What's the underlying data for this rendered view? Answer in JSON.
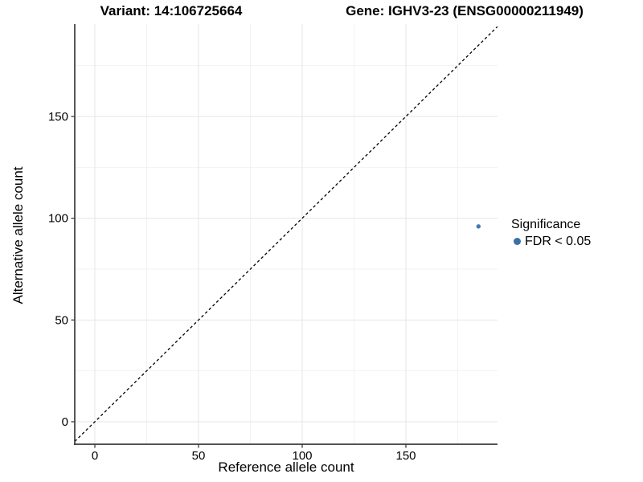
{
  "chart_data": {
    "type": "scatter",
    "title_left": "Variant: 14:106725664",
    "title_right": "Gene: IGHV3-23 (ENSG00000211949)",
    "xlabel": "Reference allele count",
    "ylabel": "Alternative allele count",
    "x_ticks": [
      0,
      50,
      100,
      150
    ],
    "y_ticks": [
      0,
      50,
      100,
      150
    ],
    "xlim": [
      -9.7,
      194.2
    ],
    "ylim": [
      -11.0,
      195.4
    ],
    "grid": "major+minor",
    "background": "#ffffff",
    "axis_line_color": "#3c3c3c",
    "major_grid_color": "#e6e6e6",
    "minor_grid_color": "#f2f2f2",
    "identity_line": {
      "slope": 1,
      "intercept": 0,
      "style": "dashed",
      "color": "#000000"
    },
    "points": [
      {
        "x": 185,
        "y": 96,
        "series": "FDR < 0.05",
        "color": "#4379B0",
        "radius": 2.7
      }
    ],
    "series": [
      {
        "name": "FDR < 0.05",
        "color": "#4379B0"
      }
    ],
    "legend": {
      "title": "Significance",
      "position": "right",
      "items": [
        {
          "label": "FDR < 0.05",
          "color": "#3D6FA8"
        }
      ]
    }
  }
}
